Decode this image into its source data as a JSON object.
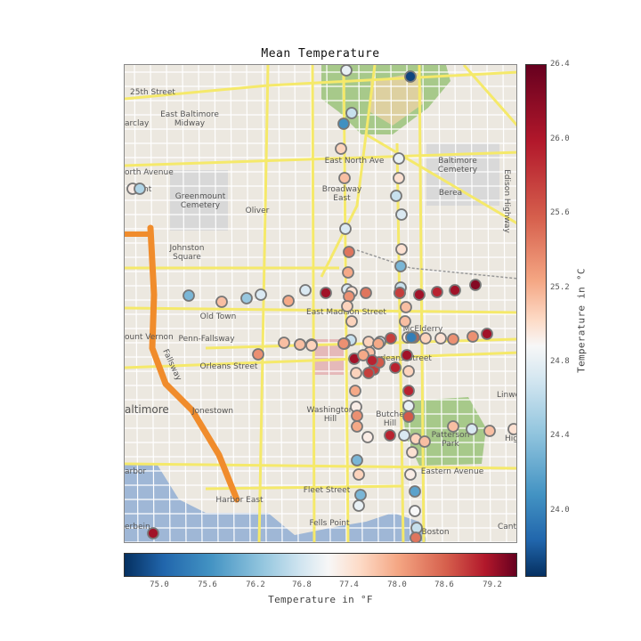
{
  "title": "Mean Temperature",
  "map": {
    "place_labels": [
      "25th Street",
      "arclay",
      "East Baltimore\nMidway",
      "orth Avenue",
      "nt",
      "Greenmount\nCemetery",
      "Oliver",
      "East North Ave",
      "Baltimore\nCemetery",
      "Broadway\nEast",
      "Berea",
      "Edison Highway",
      "Johnston\nSquare",
      "Old Town",
      "East Madison Street",
      "Penn-Fallsway",
      "ount Vernon",
      "McElderry",
      "Orleans Street",
      "rleans Street",
      "Linwo",
      "altimore",
      "Jonestown",
      "Washington\nHill",
      "Butche\nHill",
      "Patterson\nPark",
      "Hig",
      "arbor",
      "Eastern Avenue",
      "Fleet Street",
      "Harbor East",
      "Fells Point",
      "erbein",
      "Canto",
      "Boston",
      "Fallsway"
    ]
  },
  "colorbar_celsius": {
    "label": "Temperature in °C",
    "ticks": [
      "26.4",
      "26.0",
      "25.6",
      "25.2",
      "24.8",
      "24.4",
      "24.0"
    ],
    "range": [
      23.8,
      26.4
    ]
  },
  "colorbar_fahrenheit": {
    "label": "Temperature in °F",
    "ticks": [
      "75.0",
      "75.6",
      "76.2",
      "76.8",
      "77.4",
      "78.0",
      "78.6",
      "79.2"
    ],
    "range": [
      74.6,
      79.6
    ]
  },
  "colors": {
    "cmap": [
      "#053061",
      "#2166ac",
      "#4393c3",
      "#92c5de",
      "#d1e5f0",
      "#f7f7f7",
      "#fddbc7",
      "#f4a582",
      "#d6604d",
      "#b2182b",
      "#67001f"
    ],
    "road_major": "#f5e96a",
    "highway": "#f08c2c",
    "park": "#a7c98a",
    "water": "#9fb7d6"
  },
  "stations_celsius": [
    25.0,
    23.9,
    24.8,
    24.3,
    25.4,
    25.5,
    25.0,
    25.3,
    24.8,
    24.9,
    24.9,
    25.8,
    25.6,
    25.3,
    24.5,
    24.9,
    25.3,
    24.8,
    24.8,
    24.5,
    24.6,
    24.9,
    25.5,
    25.6,
    24.9,
    26.2,
    25.7,
    25.8,
    26.0,
    26.2,
    26.1,
    26.2,
    26.3,
    25.5,
    25.5,
    25.4,
    24.8,
    25.4,
    25.4,
    24.9,
    26.0,
    25.2,
    25.9,
    25.4,
    25.3,
    25.7,
    25.7,
    26.2,
    25.5,
    26.0,
    26.2,
    26.2,
    25.5,
    26.0,
    25.9,
    26.1,
    26.2,
    25.4,
    26.0,
    25.4,
    25.6,
    25.2,
    25.7,
    25.6,
    26.1,
    25.0,
    25.9,
    26.1,
    24.9,
    25.4,
    25.5,
    25.3,
    25.5,
    24.9,
    25.5,
    25.3,
    25.2,
    24.5,
    25.4,
    25.2,
    24.4,
    24.5,
    25.0,
    25.1,
    24.8,
    25.8,
    26.2,
    25.2,
    24.7,
    25.4,
    25.6,
    26.1,
    25.6,
    25.7,
    25.5,
    25.4,
    25.7,
    24.2
  ]
}
